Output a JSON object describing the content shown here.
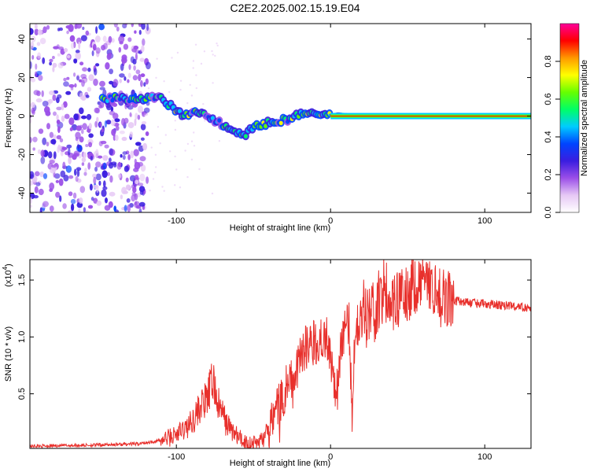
{
  "title": "C2E2.2025.002.15.19.E04",
  "colors": {
    "snr_line": "#e8302c",
    "axis": "#000000"
  },
  "chart_data": [
    {
      "type": "heatmap",
      "title": "C2E2.2025.002.15.19.E04",
      "xlabel": "Height of straight line (km)",
      "ylabel": "Frequency (Hz)",
      "xlim": [
        -195,
        130
      ],
      "ylim": [
        -50,
        48
      ],
      "xticks": [
        -100,
        0,
        100
      ],
      "yticks": [
        -40,
        -20,
        0,
        20,
        40
      ],
      "colorbar": {
        "label": "Normalized spectral amplitude",
        "range": [
          0,
          1
        ],
        "ticks": [
          "0.0",
          "0.2",
          "0.4",
          "0.6",
          "0.8"
        ],
        "colors": [
          "#ffffff",
          "#e6c8f5",
          "#9b4fe8",
          "#3a1de0",
          "#0044ff",
          "#00ccff",
          "#00ff66",
          "#66ff00",
          "#ffff00",
          "#ff9900",
          "#ff0000",
          "#ff0099"
        ]
      },
      "features": {
        "noise_region_x": [
          -195,
          -118
        ],
        "noise_freq_range": [
          -48,
          48
        ],
        "ridge": [
          [
            -148,
            9
          ],
          [
            -135,
            9
          ],
          [
            -120,
            9.5
          ],
          [
            -110,
            9
          ],
          [
            -102,
            4
          ],
          [
            -95,
            0
          ],
          [
            -85,
            2
          ],
          [
            -75,
            -2
          ],
          [
            -65,
            -7
          ],
          [
            -55,
            -9
          ],
          [
            -45,
            -4
          ],
          [
            -35,
            -3
          ],
          [
            -25,
            -1
          ],
          [
            -15,
            2
          ],
          [
            -5,
            0
          ],
          [
            5,
            1
          ],
          [
            20,
            0
          ],
          [
            60,
            0
          ],
          [
            130,
            0
          ]
        ],
        "steady_line_x": [
          0,
          130
        ],
        "steady_line_freq": 0
      }
    },
    {
      "type": "line",
      "xlabel": "Height of straight line (km)",
      "ylabel": "SNR (10 * v/v)",
      "scale_label": "(x10",
      "scale_exponent": "4",
      "xlim": [
        -195,
        130
      ],
      "ylim": [
        0.02,
        1.68
      ],
      "xticks": [
        -100,
        0,
        100
      ],
      "yticks": [
        "0.5",
        "1.0",
        "1.5"
      ],
      "ytick_values": [
        0.5,
        1.0,
        1.5
      ],
      "series": [
        {
          "x": [
            -195,
            -150,
            -125,
            -110,
            -100,
            -92,
            -88,
            -84,
            -80,
            -78,
            -76,
            -74,
            -72,
            -70,
            -68,
            -64,
            -60,
            -56,
            -52,
            -48,
            -44,
            -40,
            -36,
            -32,
            -28,
            -24,
            -20,
            -16,
            -12,
            -8,
            -4,
            0,
            4,
            8,
            12,
            14,
            16,
            20,
            24,
            28,
            32,
            36,
            40,
            44,
            48,
            52,
            56,
            60,
            64,
            68,
            72,
            80,
            90,
            100,
            110,
            120,
            130
          ],
          "y": [
            0.04,
            0.05,
            0.06,
            0.09,
            0.14,
            0.22,
            0.3,
            0.4,
            0.45,
            0.55,
            0.62,
            0.45,
            0.38,
            0.33,
            0.25,
            0.18,
            0.12,
            0.08,
            0.06,
            0.07,
            0.1,
            0.18,
            0.3,
            0.45,
            0.6,
            0.65,
            0.78,
            0.9,
            0.95,
            0.98,
            1.05,
            0.85,
            0.5,
            1.05,
            1.1,
            0.35,
            1.12,
            1.15,
            1.18,
            1.22,
            1.25,
            1.28,
            1.3,
            1.32,
            1.35,
            1.38,
            1.4,
            1.42,
            1.4,
            1.38,
            1.35,
            1.32,
            1.3,
            1.29,
            1.28,
            1.27,
            1.25
          ]
        }
      ]
    }
  ]
}
